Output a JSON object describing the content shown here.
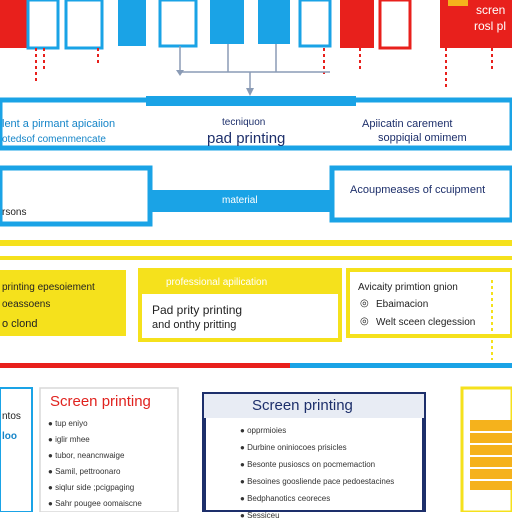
{
  "top_boxes": {
    "screen_label_1": "scren",
    "screen_label_2": "rosl pl"
  },
  "blue_band": {
    "left_label_1": "lent a pirmant apicaiion",
    "left_label_2": "otedsof comenmencate",
    "center_label_1": "tecniquon",
    "center_label_2": "pad printing",
    "right_label_1": "Apiicatin carement",
    "right_label_2": "soppiqial omimem",
    "left_small": "rsons",
    "material": "material",
    "right_lower": "Acoupmeases of ccuipment"
  },
  "yellow_band": {
    "center_title": "professional apilication",
    "left_label_1": "printing epesoiement",
    "left_label_2": "oeassoens",
    "left_label_3": "o clond",
    "center_label_1": "Pad prity printing",
    "center_label_2": "and onthy pritting",
    "right_label_1": "Avicaity primtion gnion",
    "right_item_1": "Ebaimacion",
    "right_item_2": "Welt sceen clegession"
  },
  "bottom_panels": {
    "left_partial": "ntos",
    "left_partial_2": "loo",
    "left_title": "Screen printing",
    "left_items": [
      "tup eniyo",
      "iglir mhee",
      "tubor, neancnwaige",
      "Samil, pettroonaro",
      "siqlur side ;pcigpaging",
      "Sahr pougee oomaiscne"
    ],
    "center_title": "Screen printing",
    "center_items": [
      "opprmioies",
      "Durbine oniniocoes prisicles",
      "Besonte pusioscs on pocmemaction",
      "Besoines goosliende pace pedoestacines",
      "Bedphanotics ceoreces",
      "Sessiceu"
    ]
  }
}
